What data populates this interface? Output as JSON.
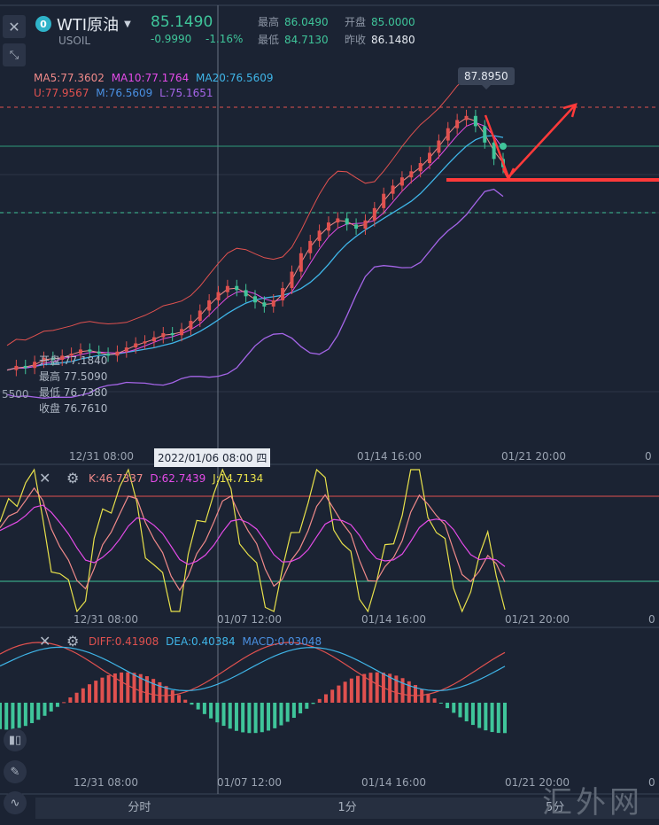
{
  "header": {
    "symbol_name": "WTI原油",
    "symbol_code": "USOIL",
    "logo_glyph": "0",
    "price": "85.1490",
    "change": "-0.9990",
    "change_pct": "-1.16%",
    "high_label": "最高",
    "high_value": "86.0490",
    "open_label": "开盘",
    "open_value": "85.0000",
    "low_label": "最低",
    "low_value": "84.7130",
    "prev_label": "昨收",
    "prev_value": "86.1480",
    "up_color": "#e0514f",
    "down_color": "#3fc59a"
  },
  "ma_legend": {
    "ma5": "MA5:77.3602",
    "ma10": "MA10:77.1764",
    "ma20": "MA20:76.5609",
    "boll_u": "U:77.9567",
    "boll_m": "M:76.5609",
    "boll_l": "L:75.1651"
  },
  "ohlc_hint": {
    "open": "开盘 77.1840",
    "high": "最高 77.5090",
    "low": "最低 76.7380",
    "close": "收盘 76.7610"
  },
  "axis": {
    "partial_price": "5500",
    "main_ticks": [
      "12/31 08:00",
      "01/14 16:00",
      "01/21 20:00"
    ],
    "crosshair_date": "2022/01/06 08:00 四",
    "sub_ticks": [
      "12/31 08:00",
      "01/07 12:00",
      "01/14 16:00",
      "01/21 20:00"
    ],
    "cut_tick": "0"
  },
  "tooltip": {
    "value": "87.8950"
  },
  "kdj": {
    "k": "K:46.7337",
    "d": "D:62.7439",
    "j": "J:14.7134"
  },
  "macd": {
    "diff": "DIFF:0.41908",
    "dea": "DEA:0.40384",
    "macd": "MACD:0.03048"
  },
  "tabs": [
    "分时",
    "1分",
    "5分"
  ],
  "watermark": "汇外网",
  "icons": [
    "close-icon",
    "expand-icon",
    "settings-icon",
    "candle-style-icon",
    "draw-pen-icon",
    "indicator-icon"
  ],
  "chart_data": {
    "type": "candlestick",
    "symbol": "WTI原油",
    "price_reference_lines": [
      87.895,
      85.149
    ],
    "x_ticks": [
      "12/31 08:00",
      "01/07 12:00",
      "01/14 16:00",
      "01/21 20:00"
    ],
    "close_series_approx": [
      75.2,
      75.4,
      75.3,
      75.6,
      75.8,
      75.7,
      75.9,
      76.0,
      76.2,
      76.1,
      76.0,
      75.9,
      76.1,
      76.3,
      76.5,
      76.6,
      76.8,
      77.0,
      76.9,
      77.2,
      77.6,
      78.1,
      78.6,
      79.0,
      79.3,
      79.1,
      78.8,
      78.5,
      78.3,
      78.6,
      79.2,
      80.0,
      80.9,
      81.5,
      82.0,
      82.4,
      82.6,
      82.3,
      82.1,
      82.5,
      83.1,
      83.8,
      84.2,
      84.6,
      84.9,
      85.3,
      85.8,
      86.4,
      87.0,
      87.4,
      87.6,
      87.1,
      86.3,
      85.5,
      85.1
    ],
    "kdj": {
      "k": 46.7337,
      "d": 62.7439,
      "j": 14.7134
    },
    "macd": {
      "diff": 0.41908,
      "dea": 0.40384,
      "macd": 0.03048
    }
  }
}
